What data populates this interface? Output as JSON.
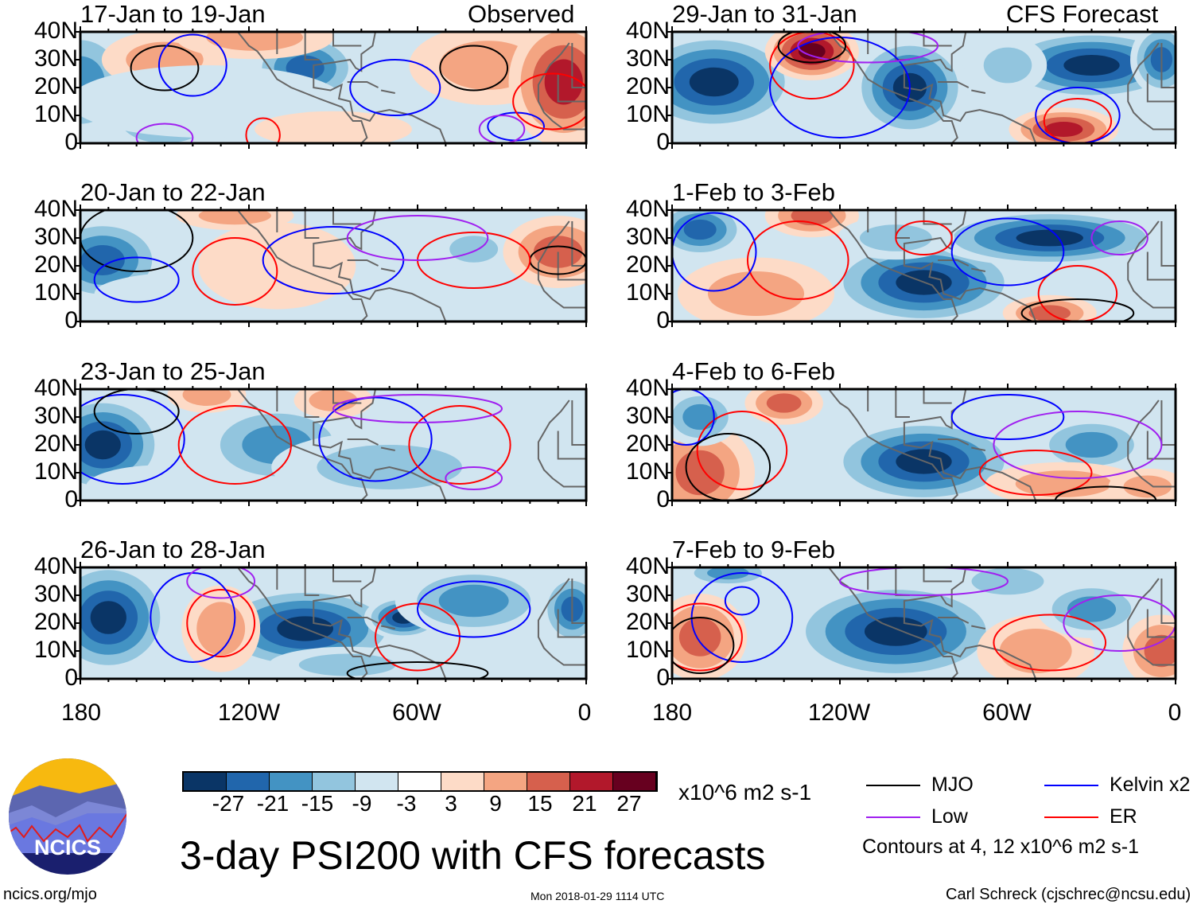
{
  "title": "3-day PSI200 with CFS forecasts",
  "observed_label": "Observed",
  "forecast_label": "CFS Forecast",
  "lat_labels": [
    "40N",
    "30N",
    "20N",
    "10N",
    "0"
  ],
  "lon_labels": [
    "180",
    "120W",
    "60W",
    "0"
  ],
  "colorbar": {
    "colors": [
      "#0a3566",
      "#2166ac",
      "#4393c3",
      "#92c5de",
      "#d1e5f0",
      "#ffffff",
      "#fddbc7",
      "#f4a582",
      "#d6604d",
      "#b2182b",
      "#67001f"
    ],
    "labels": [
      "-27",
      "-21",
      "-15",
      "-9",
      "-3",
      "3",
      "9",
      "15",
      "21",
      "27"
    ],
    "units": "x10^6 m2 s-1"
  },
  "legend": {
    "items": [
      {
        "label": "MJO",
        "color": "#000000"
      },
      {
        "label": "Kelvin x2",
        "color": "#0000ff"
      },
      {
        "label": "Low",
        "color": "#a020f0"
      },
      {
        "label": "ER",
        "color": "#ff0000"
      }
    ],
    "note": "Contours at 4, 12 x10^6 m2 s-1"
  },
  "logo_text": "NCICS",
  "footer": {
    "url": "ncics.org/mjo",
    "timestamp": "Mon 2018-01-29 1114 UTC",
    "credit": "Carl Schreck (cjschrec@ncsu.edu)"
  },
  "panels": [
    {
      "title": "17-Jan to 19-Jan",
      "shading": [
        [
          -180,
          22,
          14,
          16,
          -20
        ],
        [
          -100,
          27,
          14,
          10,
          -21
        ],
        [
          -150,
          8,
          18,
          10,
          -14
        ],
        [
          -150,
          30,
          16,
          8,
          12
        ],
        [
          -35,
          28,
          20,
          11,
          14
        ],
        [
          -8,
          22,
          14,
          18,
          21
        ],
        [
          -118,
          38,
          20,
          6,
          14
        ],
        [
          -135,
          15,
          35,
          10,
          -7
        ],
        [
          -90,
          5,
          20,
          5,
          3
        ]
      ],
      "contours": [
        [
          "mjo",
          -150,
          27,
          12,
          8
        ],
        [
          "mjo",
          -40,
          27,
          12,
          8
        ],
        [
          "kelvin",
          -140,
          28,
          12,
          11
        ],
        [
          "kelvin",
          -68,
          20,
          16,
          10
        ],
        [
          "kelvin",
          -25,
          6,
          10,
          5
        ],
        [
          "er",
          -12,
          15,
          14,
          10
        ],
        [
          "er",
          -115,
          3,
          6,
          6
        ],
        [
          "low",
          -150,
          2,
          10,
          5
        ],
        [
          "low",
          -30,
          5,
          8,
          5
        ]
      ]
    },
    {
      "title": "29-Jan to 31-Jan",
      "shading": [
        [
          -165,
          22,
          22,
          14,
          -27
        ],
        [
          -95,
          20,
          15,
          14,
          -27
        ],
        [
          -30,
          28,
          25,
          10,
          -27
        ],
        [
          -130,
          33,
          12,
          8,
          27
        ],
        [
          -40,
          5,
          14,
          6,
          21
        ],
        [
          -5,
          30,
          8,
          10,
          -21
        ],
        [
          -60,
          28,
          10,
          8,
          -9
        ]
      ],
      "contours": [
        [
          "er",
          -130,
          28,
          15,
          12
        ],
        [
          "er",
          -35,
          8,
          12,
          8
        ],
        [
          "kelvin",
          -120,
          20,
          25,
          18
        ],
        [
          "kelvin",
          -35,
          10,
          15,
          10
        ],
        [
          "low",
          -110,
          35,
          25,
          6
        ],
        [
          "mjo",
          -130,
          35,
          12,
          6
        ]
      ]
    },
    {
      "title": "20-Jan to 22-Jan",
      "shading": [
        [
          -172,
          22,
          16,
          12,
          -21
        ],
        [
          -40,
          26,
          10,
          6,
          -9
        ],
        [
          -10,
          25,
          14,
          10,
          15
        ],
        [
          -125,
          38,
          15,
          4,
          9
        ],
        [
          -75,
          8,
          20,
          8,
          -7
        ],
        [
          -140,
          10,
          25,
          6,
          -5
        ],
        [
          -110,
          20,
          20,
          12,
          3
        ]
      ],
      "contours": [
        [
          "mjo",
          -160,
          30,
          20,
          12
        ],
        [
          "mjo",
          -10,
          22,
          10,
          5
        ],
        [
          "kelvin",
          -90,
          22,
          25,
          12
        ],
        [
          "kelvin",
          -160,
          15,
          15,
          8
        ],
        [
          "er",
          -125,
          18,
          15,
          12
        ],
        [
          "er",
          -40,
          22,
          20,
          10
        ],
        [
          "low",
          -60,
          30,
          25,
          8
        ]
      ]
    },
    {
      "title": "1-Feb to 3-Feb",
      "shading": [
        [
          -170,
          33,
          12,
          8,
          -21
        ],
        [
          -90,
          14,
          25,
          12,
          -27
        ],
        [
          -45,
          30,
          30,
          8,
          -27
        ],
        [
          -130,
          38,
          12,
          6,
          15
        ],
        [
          -45,
          3,
          12,
          5,
          15
        ],
        [
          -150,
          10,
          20,
          10,
          9
        ],
        [
          -100,
          30,
          15,
          6,
          -9
        ]
      ],
      "contours": [
        [
          "er",
          -135,
          22,
          18,
          14
        ],
        [
          "er",
          -90,
          30,
          10,
          6
        ],
        [
          "er",
          -35,
          10,
          14,
          10
        ],
        [
          "kelvin",
          -165,
          25,
          15,
          14
        ],
        [
          "kelvin",
          -60,
          25,
          20,
          12
        ],
        [
          "mjo",
          -35,
          3,
          20,
          5
        ],
        [
          "low",
          -20,
          30,
          10,
          6
        ]
      ]
    },
    {
      "title": "23-Jan to 25-Jan",
      "shading": [
        [
          -172,
          20,
          16,
          14,
          -27
        ],
        [
          -110,
          20,
          20,
          12,
          -15
        ],
        [
          -70,
          12,
          30,
          10,
          -12
        ],
        [
          -90,
          36,
          10,
          5,
          12
        ],
        [
          -135,
          38,
          10,
          5,
          9
        ],
        [
          -20,
          12,
          12,
          10,
          -5
        ],
        [
          -150,
          5,
          20,
          6,
          -6
        ]
      ],
      "contours": [
        [
          "kelvin",
          -165,
          22,
          22,
          16
        ],
        [
          "kelvin",
          -75,
          22,
          20,
          15
        ],
        [
          "er",
          -125,
          20,
          20,
          14
        ],
        [
          "er",
          -45,
          20,
          18,
          14
        ],
        [
          "mjo",
          -160,
          32,
          15,
          8
        ],
        [
          "low",
          -40,
          8,
          10,
          4
        ],
        [
          "low",
          -60,
          33,
          30,
          5
        ]
      ]
    },
    {
      "title": "4-Feb to 6-Feb",
      "shading": [
        [
          -90,
          14,
          25,
          12,
          -27
        ],
        [
          -170,
          10,
          14,
          14,
          15
        ],
        [
          -140,
          35,
          10,
          6,
          15
        ],
        [
          -30,
          20,
          15,
          8,
          -15
        ],
        [
          -40,
          6,
          20,
          6,
          9
        ],
        [
          -170,
          30,
          10,
          8,
          -15
        ],
        [
          -10,
          5,
          10,
          5,
          9
        ]
      ],
      "contours": [
        [
          "er",
          -155,
          18,
          16,
          14
        ],
        [
          "er",
          -50,
          10,
          20,
          8
        ],
        [
          "kelvin",
          -175,
          30,
          10,
          10
        ],
        [
          "kelvin",
          -60,
          30,
          20,
          8
        ],
        [
          "mjo",
          -160,
          12,
          15,
          12
        ],
        [
          "mjo",
          -25,
          0,
          18,
          5
        ],
        [
          "low",
          -35,
          20,
          30,
          12
        ]
      ]
    },
    {
      "title": "26-Jan to 28-Jan",
      "shading": [
        [
          -170,
          22,
          16,
          16,
          -27
        ],
        [
          -100,
          18,
          25,
          12,
          -27
        ],
        [
          -65,
          22,
          10,
          6,
          -27
        ],
        [
          -40,
          28,
          20,
          10,
          -15
        ],
        [
          -130,
          18,
          10,
          12,
          9
        ],
        [
          -5,
          25,
          8,
          10,
          -21
        ],
        [
          -85,
          5,
          20,
          5,
          -9
        ]
      ],
      "contours": [
        [
          "er",
          -130,
          20,
          12,
          12
        ],
        [
          "er",
          -60,
          15,
          15,
          12
        ],
        [
          "kelvin",
          -140,
          22,
          15,
          16
        ],
        [
          "kelvin",
          -40,
          25,
          20,
          10
        ],
        [
          "low",
          -130,
          35,
          12,
          6
        ],
        [
          "mjo",
          -60,
          2,
          25,
          4
        ]
      ]
    },
    {
      "title": "7-Feb to 9-Feb",
      "shading": [
        [
          -100,
          17,
          28,
          14,
          -27
        ],
        [
          -170,
          15,
          12,
          12,
          15
        ],
        [
          -50,
          10,
          15,
          10,
          9
        ],
        [
          -30,
          25,
          14,
          8,
          -15
        ],
        [
          -5,
          10,
          10,
          10,
          15
        ],
        [
          -160,
          38,
          12,
          4,
          -15
        ],
        [
          -60,
          35,
          15,
          6,
          -9
        ]
      ],
      "contours": [
        [
          "kelvin",
          -155,
          22,
          18,
          16
        ],
        [
          "kelvin",
          -155,
          28,
          6,
          5
        ],
        [
          "er",
          -45,
          13,
          20,
          10
        ],
        [
          "er",
          -170,
          15,
          15,
          12
        ],
        [
          "low",
          -20,
          20,
          20,
          10
        ],
        [
          "low",
          -90,
          35,
          30,
          5
        ],
        [
          "mjo",
          -170,
          12,
          12,
          10
        ]
      ]
    }
  ]
}
